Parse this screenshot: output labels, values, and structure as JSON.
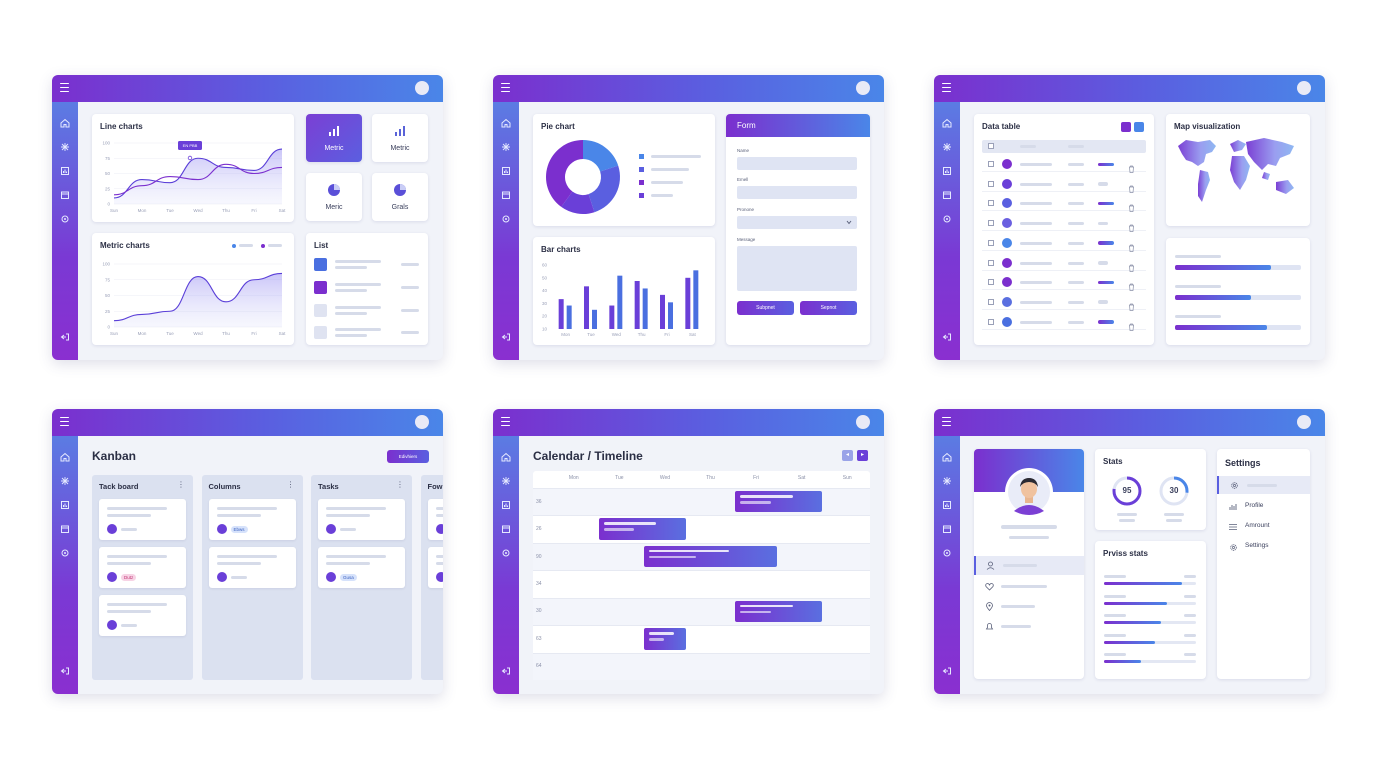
{
  "w1": {
    "line_title": "Line charts",
    "badge": "EN PBB",
    "metric_title": "Metric charts",
    "list_title": "List",
    "tile1": "Metric",
    "tile2": "Metric",
    "tile3": "Meric",
    "tile4": "Grals",
    "y_ticks": [
      "100",
      "75",
      "50",
      "25",
      "0"
    ],
    "x_ticks": [
      "Sun",
      "Mon",
      "Tue",
      "Wed",
      "Thu",
      "Fri",
      "Sat"
    ]
  },
  "w2": {
    "pie_title": "Pie chart",
    "bar_title": "Bar charts",
    "form_title": "Form",
    "name_label": "Name",
    "email_label": "Emell",
    "phone_label": "Pronone",
    "message_label": "Message",
    "btn1": "Subpnet",
    "btn2": "Sepnot",
    "bar_y": [
      "60",
      "50",
      "40",
      "30",
      "20",
      "10"
    ],
    "bar_x": [
      "Mon",
      "Tue",
      "Wed",
      "Thu",
      "Fri",
      "Sat"
    ]
  },
  "w3": {
    "table_title": "Data table",
    "map_title": "Map visualization"
  },
  "w4": {
    "title": "Kanban",
    "button": "Edivhiers",
    "col1": "Tack board",
    "col2": "Columns",
    "col3": "Tasks",
    "col4": "Fow",
    "tag1": "Dutz",
    "tag2": "Ebws",
    "tag3": "Gusa"
  },
  "w5": {
    "title": "Calendar / Timeline",
    "days": [
      "Mon",
      "Tue",
      "Wed",
      "Thu",
      "Fri",
      "Sat",
      "Sun"
    ],
    "rows": [
      "36",
      "26",
      "90",
      "34",
      "30",
      "63",
      "64"
    ]
  },
  "w6": {
    "stats_title": "Stats",
    "stat1": "95",
    "stat2": "30",
    "progress_title": "Prviss stats",
    "settings_title": "Settings",
    "menu1": "Profile",
    "menu2": "Amrount",
    "menu3": "Settings"
  },
  "chart_data": [
    {
      "type": "area",
      "title": "Line charts",
      "x": [
        "Sun",
        "Mon",
        "Tue",
        "Wed",
        "Thu",
        "Fri",
        "Sat"
      ],
      "ylim": [
        0,
        100
      ],
      "series": [
        {
          "values": [
            10,
            40,
            35,
            75,
            60,
            55,
            90
          ]
        },
        {
          "values": [
            15,
            30,
            45,
            40,
            65,
            50,
            60
          ]
        }
      ]
    },
    {
      "type": "area",
      "title": "Metric charts",
      "x": [
        "Sun",
        "Mon",
        "Tue",
        "Wed",
        "Thu",
        "Fri",
        "Sat"
      ],
      "ylim": [
        0,
        100
      ],
      "series": [
        {
          "values": [
            10,
            20,
            25,
            80,
            40,
            75,
            85
          ]
        }
      ]
    },
    {
      "type": "pie",
      "title": "Pie chart",
      "values": [
        20,
        25,
        15,
        40
      ]
    },
    {
      "type": "bar",
      "title": "Bar charts",
      "categories": [
        "Mon",
        "Tue",
        "Wed",
        "Thu",
        "Fri",
        "Sat"
      ],
      "ylim": [
        0,
        60
      ],
      "series": [
        {
          "values": [
            28,
            40,
            22,
            45,
            32,
            48
          ]
        },
        {
          "values": [
            22,
            18,
            50,
            38,
            25,
            55
          ]
        }
      ]
    }
  ]
}
